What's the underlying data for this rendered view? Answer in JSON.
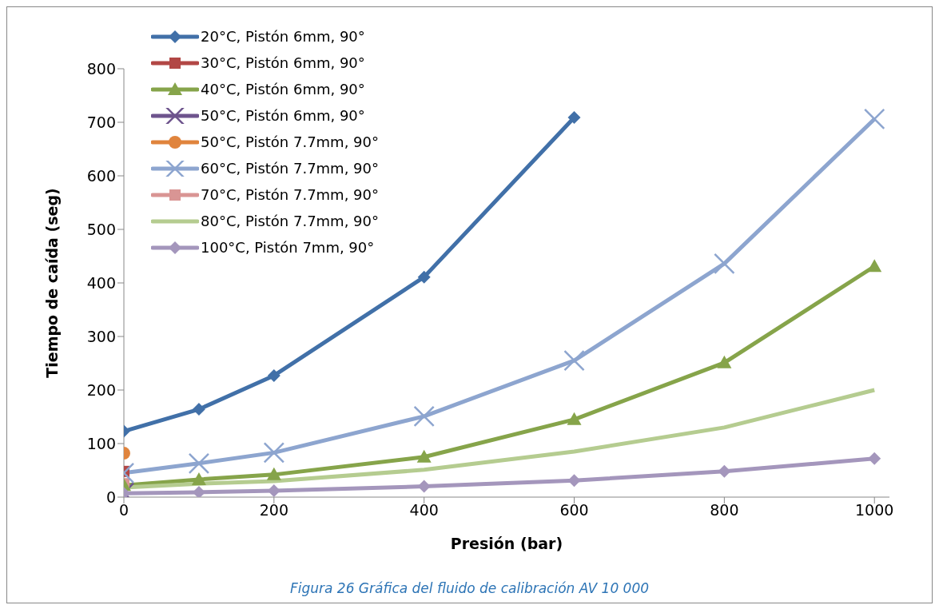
{
  "chart_data": {
    "type": "line",
    "xlabel": "Presión (bar)",
    "ylabel": "Tiempo de caída (seg)",
    "annotations": [
      "Figura 26 Gráfica del fluido de calibración AV 10 000"
    ],
    "x": [
      0,
      100,
      200,
      400,
      600,
      800,
      1000
    ],
    "xlim": [
      0,
      1020
    ],
    "xticks": [
      0,
      200,
      400,
      600,
      800,
      1000
    ],
    "ylim": [
      0,
      800
    ],
    "yticks": [
      0,
      100,
      200,
      300,
      400,
      500,
      600,
      700,
      800
    ],
    "grid": false,
    "legend": "top left",
    "line_style": "solid",
    "series": [
      {
        "name": "20°C, Pistón 6mm, 90°",
        "color": "#4170a8",
        "marker": "diamond",
        "x": [
          0,
          100,
          200,
          400,
          600
        ],
        "values": [
          123,
          164,
          227,
          411,
          709
        ]
      },
      {
        "name": "30°C, Pistón 6mm, 90°",
        "color": "#b24745",
        "marker": "square",
        "x": [
          0
        ],
        "values": [
          48
        ]
      },
      {
        "name": "40°C, Pistón 6mm, 90°",
        "color": "#86a44a",
        "marker": "triangle",
        "values": [
          22,
          33,
          42,
          75,
          145,
          251,
          431
        ]
      },
      {
        "name": "50°C, Pistón 6mm, 90°",
        "color": "#6e548d",
        "marker": "cross",
        "x": [
          0
        ],
        "values": [
          8
        ]
      },
      {
        "name": "50°C, Pistón 7.7mm, 90°",
        "color": "#e0843d",
        "marker": "circle",
        "x": [
          0
        ],
        "values": [
          82
        ]
      },
      {
        "name": "60°C, Pistón 7.7mm, 90°",
        "color": "#8da5cf",
        "marker": "cross",
        "values": [
          45,
          63,
          83,
          151,
          255,
          436,
          706
        ]
      },
      {
        "name": "70°C, Pistón 7.7mm, 90°",
        "color": "#d99594",
        "marker": "square",
        "x": [
          0
        ],
        "values": [
          25
        ]
      },
      {
        "name": "80°C, Pistón 7.7mm, 90°",
        "color": "#b5cc90",
        "marker": "none",
        "values": [
          18,
          25,
          30,
          51,
          85,
          130,
          200
        ]
      },
      {
        "name": "100°C, Pistón 7mm, 90°",
        "color": "#a496bc",
        "marker": "diamond",
        "values": [
          7,
          9,
          12,
          20,
          31,
          48,
          72
        ]
      }
    ]
  }
}
